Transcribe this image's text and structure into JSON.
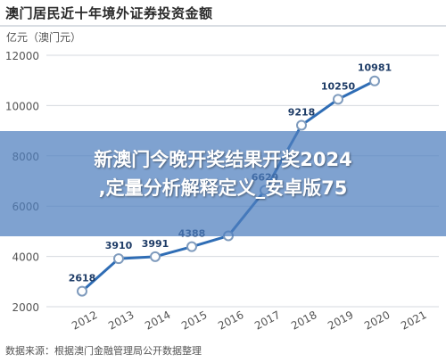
{
  "header": {
    "title": "澳门居民近十年境外证券投资金额"
  },
  "chart_data": {
    "type": "line",
    "ylabel": "亿元（澳门元）",
    "x": [
      "2012",
      "2013",
      "2014",
      "2015",
      "2016",
      "2017",
      "2018",
      "2019",
      "2020",
      "2021"
    ],
    "y_ticks": [
      2000,
      4000,
      6000,
      8000,
      10000,
      12000
    ],
    "ylim": [
      2000,
      12000
    ],
    "grid": true,
    "series": [
      {
        "points": [
          {
            "x": "2012",
            "y": 2618
          },
          {
            "x": "2013",
            "y": 3910
          },
          {
            "x": "2014",
            "y": 3991
          },
          {
            "x": "2015",
            "y": 4388
          },
          {
            "x": "2016",
            "y": 4820
          },
          {
            "x": "2017",
            "y": 6629
          },
          {
            "x": "2018",
            "y": 9218
          },
          {
            "x": "2019",
            "y": 10250
          },
          {
            "x": "2020",
            "y": 10981
          }
        ]
      }
    ],
    "data_labels": [
      "2618",
      "3910",
      "3991",
      "4388",
      "",
      "6629",
      "9218",
      "10250",
      "10981"
    ],
    "colors": {
      "line": "#2f6db5",
      "marker_fill": "#ffffff",
      "grid": "#d5d9df"
    }
  },
  "source": {
    "text": "数据来源：根据澳门金融管理局公开数据整理"
  },
  "overlay": {
    "line1": "新澳门今晚开奖结果开奖2024",
    "line2": ",定量分析解释定义_安卓版75"
  }
}
